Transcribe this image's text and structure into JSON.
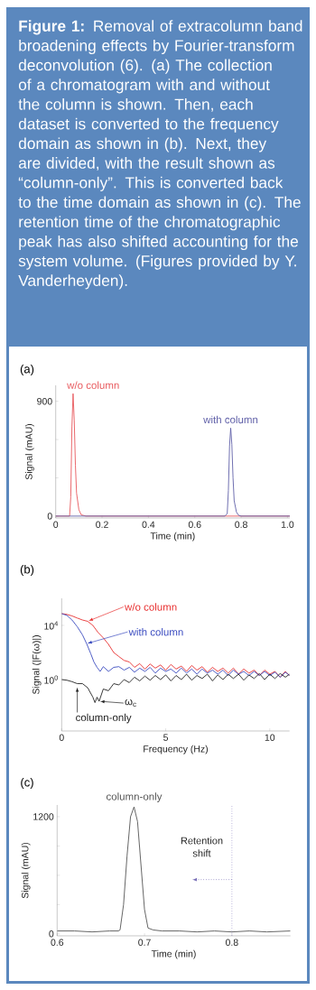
{
  "chart_data": [
    {
      "type": "line",
      "title": "(a)",
      "xlabel": "Time (min)",
      "ylabel": "Signal (mAU)",
      "annotations": [
        "**Figure 1:** Removal of extracolumn band broadening effects by Fourier-transform deconvolution (6). (a) The collection of a chromatogram with and without the column is shown. Then, each dataset is converted to the frequency domain as shown in (b). Next, they are divided, with the result shown as “column-only”. This is converted back to the time domain as shown in (c). The retention time of the chromatographic peak has also shifted accounting for the system volume. (Figures provided by Y. Vanderheyden)."
      ],
      "xlim": [
        0,
        1.01
      ],
      "xticks": [
        0,
        0.2,
        0.4,
        0.6,
        0.8,
        {
          "value": 1,
          "label": "1.0"
        }
      ],
      "ylim": [
        -15,
        1025
      ],
      "yticks": [
        0,
        {
          "value": 300,
          "label": null
        },
        {
          "value": 600,
          "label": null
        },
        900
      ],
      "series": [
        {
          "name": "w/o column",
          "color": "#e8585c",
          "x": [
            0,
            0.06,
            0.065,
            0.07,
            0.075,
            0.08,
            0.085,
            0.09,
            0.1,
            0.11,
            0.13,
            1.01
          ],
          "values": [
            0,
            0,
            150,
            700,
            960,
            750,
            400,
            180,
            50,
            10,
            0,
            0
          ]
        },
        {
          "name": "with column",
          "color": "#6060a8",
          "x": [
            0,
            0.73,
            0.74,
            0.745,
            0.75,
            0.755,
            0.76,
            0.765,
            0.77,
            0.78,
            0.79,
            0.8,
            1.01
          ],
          "values": [
            0,
            0,
            20,
            200,
            550,
            690,
            560,
            300,
            120,
            30,
            5,
            0,
            0
          ]
        }
      ]
    },
    {
      "type": "line",
      "title": "(b)",
      "xlabel": "Frequency (Hz)",
      "ylabel": "Signal (|F(ω)|)",
      "log": "y",
      "xlim": [
        0,
        10.95
      ],
      "xticks": [
        0,
        5,
        10
      ],
      "ylim": [
        0.00016,
        1000000
      ],
      "yticks": [
        {
          "value": 1,
          "label": "10$^{0}$"
        },
        {
          "value": 10000,
          "label": "10$^{4}$"
        }
      ],
      "annotations": [
        {
          "text": "w/o column",
          "x": 1.25,
          "y": 20000
        },
        {
          "text": "with column",
          "x": 1.2,
          "y": 450
        },
        {
          "text": "column-only",
          "x": 0.75,
          "y": 0.5
        },
        {
          "text": "ω$_{c}$",
          "x": 1.8,
          "y": 0.025
        }
      ],
      "series": [
        {
          "color": "#e83030",
          "x": [
            0,
            0.25,
            0.5,
            0.75,
            1.0,
            1.25,
            1.5,
            1.75,
            2.0,
            2.25,
            2.5,
            2.75,
            3.0,
            3.25,
            3.5,
            3.75,
            4,
            4.25,
            4.5,
            4.75,
            5,
            5.25,
            5.5,
            5.75,
            6,
            6.25,
            6.5,
            6.75,
            7,
            7.25,
            7.5,
            7.75,
            8,
            8.25,
            8.5,
            8.75,
            9,
            9.25,
            9.5,
            9.75,
            10,
            10.25,
            10.5,
            10.75,
            10.95
          ],
          "values": [
            74000,
            65000,
            50000,
            35000,
            25000,
            20000,
            10000,
            3000,
            1200,
            400,
            100,
            50,
            26,
            20,
            8,
            15,
            6,
            14,
            7,
            12,
            5,
            13,
            6,
            10,
            4,
            11,
            5,
            9,
            3.5,
            8,
            4,
            7,
            3,
            7,
            2.5,
            6,
            3,
            5,
            2,
            5,
            2.5,
            4,
            1.5,
            4,
            2
          ]
        },
        {
          "color": "#3b4cc0",
          "x": [
            0,
            0.25,
            0.5,
            0.75,
            1.0,
            1.2,
            1.4,
            1.55,
            1.7,
            1.85,
            2.0,
            2.25,
            2.5,
            2.75,
            3,
            3.25,
            3.5,
            3.75,
            4,
            4.25,
            4.5,
            4.75,
            5,
            5.25,
            5.5,
            5.75,
            6,
            6.25,
            6.5,
            6.75,
            7,
            7.25,
            7.5,
            7.75,
            8,
            8.25,
            8.5,
            8.75,
            9,
            9.25,
            9.5,
            9.75,
            10,
            10.25,
            10.5,
            10.75,
            10.95
          ],
          "values": [
            74000,
            55000,
            25000,
            8000,
            2000,
            450,
            80,
            20,
            8,
            4,
            9,
            4,
            8,
            9,
            5,
            8,
            3.5,
            7,
            4,
            8,
            3,
            7,
            4,
            6,
            3,
            7,
            3,
            6,
            2.5,
            6,
            3,
            5,
            2.5,
            5,
            2,
            5,
            2.5,
            4,
            2,
            4,
            2,
            4,
            2,
            3.5,
            1.5,
            3.5,
            2
          ]
        },
        {
          "color": "#222222",
          "x": [
            0,
            0.25,
            0.5,
            0.75,
            1.0,
            1.25,
            1.5,
            1.6,
            1.7,
            1.8,
            2.0,
            2.25,
            2.5,
            2.75,
            3,
            3.25,
            3.5,
            3.75,
            4,
            4.25,
            4.5,
            4.75,
            5,
            5.25,
            5.5,
            5.75,
            6,
            6.25,
            6.5,
            6.75,
            7,
            7.25,
            7.5,
            7.75,
            8,
            8.25,
            8.5,
            8.75,
            9,
            9.25,
            9.5,
            9.75,
            10,
            10.25,
            10.5,
            10.75,
            10.95
          ],
          "values": [
            1,
            0.9,
            0.7,
            0.5,
            0.5,
            0.25,
            0.05,
            0.02,
            0.05,
            0.025,
            0.2,
            0.15,
            0.5,
            0.4,
            1,
            0.6,
            1.5,
            0.8,
            1.8,
            0.9,
            2,
            1,
            2.2,
            0.8,
            2,
            1,
            2.5,
            0.9,
            2,
            1.2,
            2.5,
            0.8,
            2.2,
            1,
            2.5,
            1.2,
            2.5,
            0.9,
            2.2,
            1.2,
            2.8,
            1,
            2.5,
            1.2,
            2.8,
            1.5,
            2.5
          ]
        }
      ]
    },
    {
      "type": "line",
      "title": "(c)",
      "xlabel": "Time (min)",
      "ylabel": "Signal (mAU)",
      "xlim": [
        0.6,
        0.867
      ],
      "xticks": [
        0.6,
        0.7,
        0.8
      ],
      "ylim": [
        -20,
        1320
      ],
      "yticks": [
        0,
        {
          "value": 300,
          "label": null
        },
        {
          "value": 600,
          "label": null
        },
        {
          "value": 900,
          "label": null
        },
        1200
      ],
      "ref_lines": [
        {
          "axis": "x",
          "value": 0.8,
          "color": "#7a70b8",
          "line_style": "dotted"
        }
      ],
      "annotations": [
        "Retention shift"
      ],
      "series": [
        {
          "name": "column-only",
          "color": "#555555",
          "x": [
            0.6,
            0.62,
            0.64,
            0.66,
            0.67,
            0.672,
            0.676,
            0.68,
            0.684,
            0.688,
            0.692,
            0.696,
            0.7,
            0.704,
            0.71,
            0.72,
            0.74,
            0.76,
            0.78,
            0.8,
            0.82,
            0.84,
            0.867
          ],
          "values": [
            30,
            30,
            20,
            30,
            30,
            40,
            300,
            800,
            1200,
            1300,
            1150,
            700,
            250,
            60,
            40,
            30,
            30,
            20,
            30,
            20,
            30,
            20,
            30
          ]
        }
      ]
    }
  ]
}
